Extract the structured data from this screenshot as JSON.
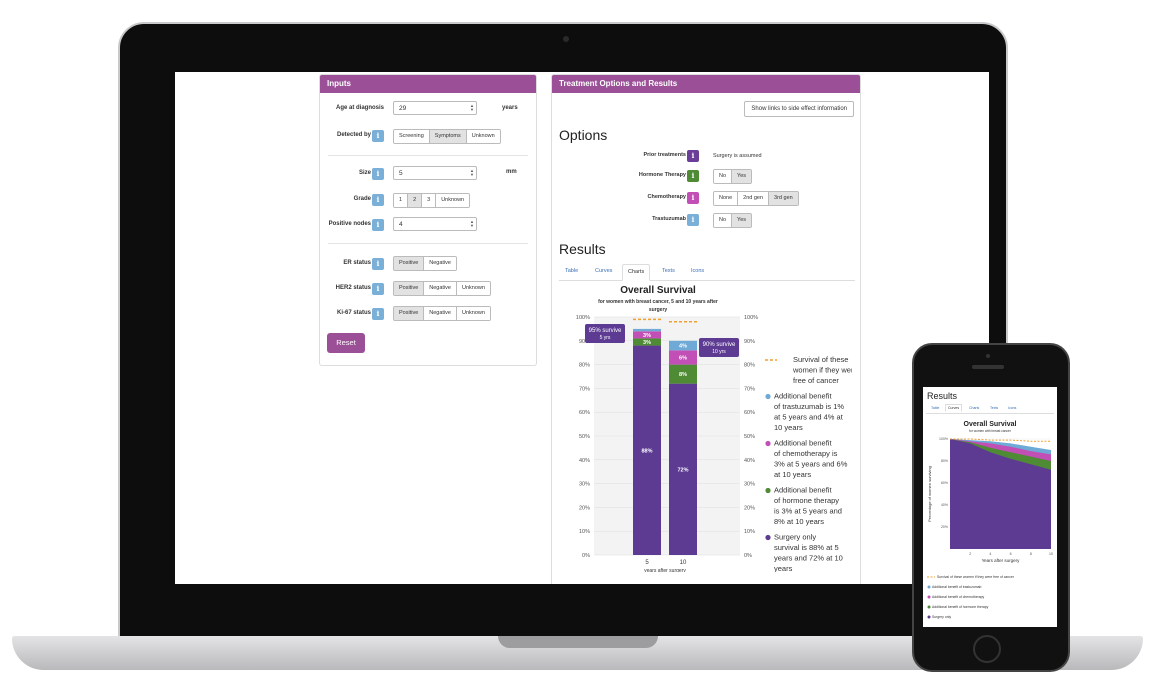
{
  "inputs": {
    "header": "Inputs",
    "age_label": "Age at diagnosis",
    "age_value": "29",
    "age_unit": "years",
    "detected_label": "Detected by",
    "detected_options": [
      "Screening",
      "Symptoms",
      "Unknown"
    ],
    "detected_selected": "Symptoms",
    "size_label": "Size",
    "size_value": "5",
    "size_unit": "mm",
    "grade_label": "Grade",
    "grade_options": [
      "1",
      "2",
      "3",
      "Unknown"
    ],
    "grade_selected": "2",
    "nodes_label": "Positive nodes",
    "nodes_value": "4",
    "er_label": "ER status",
    "er_options": [
      "Positive",
      "Negative"
    ],
    "er_selected": "Positive",
    "her2_label": "HER2 status",
    "her2_options": [
      "Positive",
      "Negative",
      "Unknown"
    ],
    "her2_selected": "Positive",
    "ki67_label": "Ki-67 status",
    "ki67_options": [
      "Positive",
      "Negative",
      "Unknown"
    ],
    "ki67_selected": "Positive",
    "reset_label": "Reset",
    "info_icon": "i"
  },
  "results_panel": {
    "header": "Treatment Options and Results",
    "show_links_label": "Show links to side effect information",
    "options_title": "Options",
    "prior_label": "Prior treatments",
    "prior_value": "Surgery is assumed",
    "hormone_label": "Hormone Therapy",
    "hormone_options": [
      "No",
      "Yes"
    ],
    "hormone_selected": "Yes",
    "chemo_label": "Chemotherapy",
    "chemo_options": [
      "None",
      "2nd gen",
      "3rd gen"
    ],
    "chemo_selected": "3rd gen",
    "trast_label": "Trastuzumab",
    "trast_options": [
      "No",
      "Yes"
    ],
    "trast_selected": "Yes",
    "results_title": "Results",
    "tabs": [
      "Table",
      "Curves",
      "Charts",
      "Texts",
      "Icons"
    ],
    "active_tab": "Charts"
  },
  "colors": {
    "brand": "#9a4f96",
    "surgery": "#5d3b93",
    "hormone": "#4f8a35",
    "chemo": "#c24fb6",
    "trastuzumab": "#6fa9d6",
    "free_line": "#f0a030"
  },
  "chart_data": [
    {
      "type": "bar",
      "title": "Overall Survival",
      "subtitle": "for women with breast cancer, 5 and 10 years after surgery",
      "xlabel": "years after surgery",
      "categories": [
        "5",
        "10"
      ],
      "ylim": [
        0,
        100
      ],
      "yticks": [
        "0%",
        "10%",
        "20%",
        "30%",
        "40%",
        "50%",
        "60%",
        "70%",
        "80%",
        "90%",
        "100%"
      ],
      "series": [
        {
          "key": "surgery",
          "values": [
            88,
            72
          ],
          "labels": [
            "88%",
            "72%"
          ]
        },
        {
          "key": "hormone",
          "values": [
            3,
            8
          ],
          "labels": [
            "3%",
            "8%"
          ]
        },
        {
          "key": "chemo",
          "values": [
            3,
            6
          ],
          "labels": [
            "3%",
            "6%"
          ]
        },
        {
          "key": "trastuzumab",
          "values": [
            1,
            4
          ],
          "labels": [
            "",
            "4%"
          ]
        }
      ],
      "free_of_cancer": [
        99,
        98
      ],
      "callouts": [
        {
          "category": "5",
          "line1": "95% survive",
          "line2": "5 yrs"
        },
        {
          "category": "10",
          "line1": "90% survive",
          "line2": "10 yrs"
        }
      ],
      "legend": [
        {
          "key": "free",
          "text": "Survival of these women if they were free of cancer"
        },
        {
          "key": "trastuzumab",
          "text": "Additional benefit of trastuzumab is 1% at 5 years and 4% at 10 years"
        },
        {
          "key": "chemo",
          "text": "Additional benefit of chemotherapy is 3% at 5 years and 6% at 10 years"
        },
        {
          "key": "hormone",
          "text": "Additional benefit of hormone therapy is 3% at 5 years and 8% at 10 years"
        },
        {
          "key": "surgery",
          "text": "Surgery only survival is 88% at 5 years and 72% at 10 years"
        }
      ],
      "grid": true,
      "legend_position": "right"
    },
    {
      "type": "area",
      "title": "Overall Survival",
      "subtitle": "for women with breast cancer",
      "xlabel": "Years after surgery",
      "ylabel": "Percentage of women surviving",
      "x": [
        0,
        2,
        4,
        6,
        8,
        10
      ],
      "xticks": [
        "2",
        "4",
        "6",
        "8",
        "10"
      ],
      "yticks": [
        "20%",
        "40%",
        "60%",
        "80%",
        "100%"
      ],
      "ylim": [
        0,
        100
      ],
      "series": [
        {
          "key": "surgery",
          "values": [
            100,
            96,
            88,
            82,
            77,
            72
          ]
        },
        {
          "key": "hormone",
          "values": [
            100,
            97,
            92,
            88,
            84,
            80
          ]
        },
        {
          "key": "chemo",
          "values": [
            100,
            98,
            96,
            93,
            89,
            86
          ]
        },
        {
          "key": "trastuzumab",
          "values": [
            100,
            99,
            98,
            96,
            93,
            90
          ]
        }
      ],
      "free_of_cancer": [
        100,
        100,
        99,
        99,
        98,
        98
      ],
      "legend": [
        {
          "key": "free",
          "text": "Survival of these women if they were free of cancer"
        },
        {
          "key": "trastuzumab",
          "text": "Additional benefit of trastuzumab"
        },
        {
          "key": "chemo",
          "text": "Additional benefit of chemotherapy"
        },
        {
          "key": "hormone",
          "text": "Additional benefit of hormone therapy"
        },
        {
          "key": "surgery",
          "text": "Surgery only"
        }
      ]
    }
  ],
  "phone": {
    "results_title": "Results",
    "tabs": [
      "Table",
      "Curves",
      "Charts",
      "Texts",
      "Icons"
    ]
  }
}
